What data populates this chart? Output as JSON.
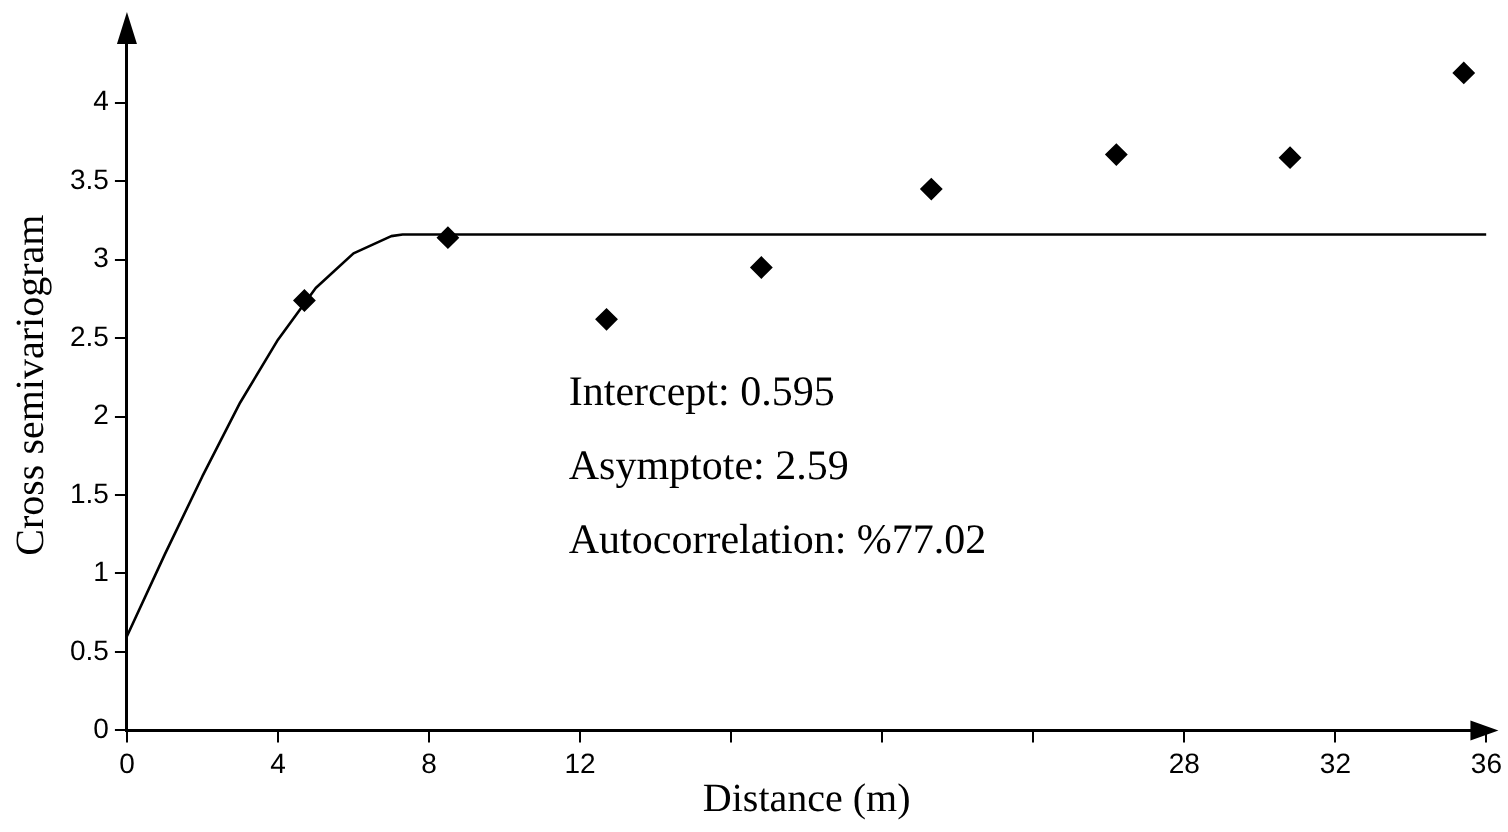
{
  "chart_data": {
    "type": "scatter",
    "xlabel": "Distance (m)",
    "ylabel": "Cross semivariogram",
    "annotations": [
      "Intercept: 0.595",
      "Asymptote: 2.59",
      "Autocorrelation: %77.02"
    ],
    "xlim": [
      0,
      36
    ],
    "ylim": [
      0,
      4.4
    ],
    "xticks": [
      0,
      4,
      8,
      12,
      {
        "value": 16,
        "label": null
      },
      {
        "value": 20,
        "label": null
      },
      {
        "value": 24,
        "label": null
      },
      28,
      32,
      36
    ],
    "yticks": [
      0,
      0.5,
      1,
      1.5,
      2,
      2.5,
      3,
      3.5,
      4
    ],
    "grid": false,
    "legend": false,
    "series": [
      {
        "type": "scatter",
        "color": "#000000",
        "marker": "diamond",
        "x": [
          4.7,
          8.5,
          12.7,
          16.8,
          21.3,
          26.2,
          30.8,
          35.4
        ],
        "values": [
          2.74,
          3.14,
          2.62,
          2.95,
          3.45,
          3.67,
          3.65,
          4.19
        ]
      },
      {
        "type": "line",
        "color": "#000000",
        "marker": "none",
        "line_style": "solid",
        "x": [
          0,
          1,
          2,
          3,
          4,
          5,
          6,
          7,
          7.3,
          36
        ],
        "values": [
          0.6,
          1.12,
          1.62,
          2.09,
          2.49,
          2.82,
          3.04,
          3.15,
          3.16,
          3.16
        ]
      }
    ]
  }
}
